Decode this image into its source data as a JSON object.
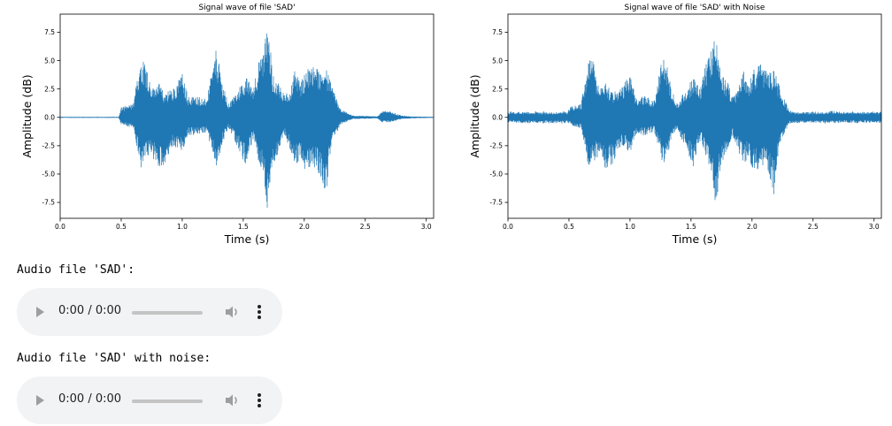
{
  "chart_data": [
    {
      "type": "line",
      "title": "Signal wave of file 'SAD'",
      "xlabel": "Time (s)",
      "ylabel": "Amplitude (dB)",
      "xlim": [
        0.0,
        3.06
      ],
      "ylim": [
        -8.9,
        9.1
      ],
      "xticks": [
        "0.0",
        "0.5",
        "1.0",
        "1.5",
        "2.0",
        "2.5",
        "3.0"
      ],
      "yticks": [
        "-7.5",
        "-5.0",
        "-2.5",
        "0.0",
        "2.5",
        "5.0",
        "7.5"
      ],
      "color": "#1f77b4",
      "noise_floor": 0.05,
      "envelope": [
        [
          0.0,
          0.05,
          -0.05
        ],
        [
          0.48,
          0.05,
          -0.05
        ],
        [
          0.5,
          0.9,
          -0.6
        ],
        [
          0.6,
          1.2,
          -1.0
        ],
        [
          0.66,
          5.4,
          -4.6
        ],
        [
          0.7,
          4.9,
          -3.9
        ],
        [
          0.75,
          2.5,
          -3.4
        ],
        [
          0.8,
          3.2,
          -4.6
        ],
        [
          0.85,
          2.2,
          -4.2
        ],
        [
          0.93,
          2.6,
          -2.6
        ],
        [
          1.0,
          3.9,
          -3.1
        ],
        [
          1.05,
          1.8,
          -1.6
        ],
        [
          1.12,
          1.9,
          -1.6
        ],
        [
          1.2,
          1.6,
          -1.3
        ],
        [
          1.28,
          6.1,
          -4.6
        ],
        [
          1.33,
          3.0,
          -2.3
        ],
        [
          1.38,
          1.2,
          -1.0
        ],
        [
          1.45,
          2.3,
          -2.5
        ],
        [
          1.52,
          3.6,
          -4.4
        ],
        [
          1.58,
          2.8,
          -1.9
        ],
        [
          1.62,
          4.7,
          -3.7
        ],
        [
          1.67,
          6.0,
          -5.6
        ],
        [
          1.7,
          8.9,
          -8.8
        ],
        [
          1.74,
          4.0,
          -4.5
        ],
        [
          1.8,
          3.1,
          -3.0
        ],
        [
          1.84,
          1.9,
          -1.6
        ],
        [
          1.88,
          2.5,
          -2.7
        ],
        [
          1.93,
          4.4,
          -4.3
        ],
        [
          1.97,
          3.1,
          -3.5
        ],
        [
          2.02,
          4.4,
          -5.1
        ],
        [
          2.08,
          4.7,
          -4.4
        ],
        [
          2.13,
          3.9,
          -5.1
        ],
        [
          2.18,
          4.4,
          -6.8
        ],
        [
          2.22,
          2.9,
          -2.6
        ],
        [
          2.3,
          0.7,
          -0.6
        ],
        [
          2.4,
          0.15,
          -0.15
        ],
        [
          2.6,
          0.1,
          -0.1
        ],
        [
          2.64,
          0.6,
          -0.5
        ],
        [
          2.72,
          0.5,
          -0.4
        ],
        [
          2.8,
          0.15,
          -0.15
        ],
        [
          2.9,
          0.08,
          -0.08
        ],
        [
          3.06,
          0.05,
          -0.05
        ]
      ]
    },
    {
      "type": "line",
      "title": "Signal wave of file 'SAD' with Noise",
      "xlabel": "Time (s)",
      "ylabel": "Amplitude (dB)",
      "xlim": [
        0.0,
        3.06
      ],
      "ylim": [
        -8.9,
        9.1
      ],
      "xticks": [
        "0.0",
        "0.5",
        "1.0",
        "1.5",
        "2.0",
        "2.5",
        "3.0"
      ],
      "yticks": [
        "-7.5",
        "-5.0",
        "-2.5",
        "0.0",
        "2.5",
        "5.0",
        "7.5"
      ],
      "color": "#1f77b4",
      "noise_floor": 0.55,
      "envelope": [
        [
          0.0,
          0.05,
          -0.05
        ],
        [
          0.48,
          0.05,
          -0.05
        ],
        [
          0.5,
          0.9,
          -0.6
        ],
        [
          0.6,
          1.2,
          -1.0
        ],
        [
          0.66,
          5.4,
          -4.6
        ],
        [
          0.7,
          4.9,
          -3.9
        ],
        [
          0.75,
          2.5,
          -3.4
        ],
        [
          0.8,
          3.2,
          -4.6
        ],
        [
          0.85,
          2.2,
          -4.2
        ],
        [
          0.93,
          2.6,
          -2.6
        ],
        [
          1.0,
          3.9,
          -3.1
        ],
        [
          1.05,
          1.8,
          -1.6
        ],
        [
          1.12,
          1.9,
          -1.6
        ],
        [
          1.2,
          1.6,
          -1.3
        ],
        [
          1.28,
          6.1,
          -4.6
        ],
        [
          1.33,
          3.0,
          -2.3
        ],
        [
          1.38,
          1.2,
          -1.0
        ],
        [
          1.45,
          2.3,
          -2.5
        ],
        [
          1.52,
          3.6,
          -4.4
        ],
        [
          1.58,
          2.8,
          -1.9
        ],
        [
          1.62,
          4.7,
          -3.7
        ],
        [
          1.67,
          6.0,
          -5.6
        ],
        [
          1.7,
          8.9,
          -8.8
        ],
        [
          1.74,
          4.0,
          -4.5
        ],
        [
          1.8,
          3.1,
          -3.0
        ],
        [
          1.84,
          1.9,
          -1.6
        ],
        [
          1.88,
          2.5,
          -2.7
        ],
        [
          1.93,
          4.4,
          -4.3
        ],
        [
          1.97,
          3.1,
          -3.5
        ],
        [
          2.02,
          4.4,
          -5.1
        ],
        [
          2.08,
          4.7,
          -4.4
        ],
        [
          2.13,
          3.9,
          -5.1
        ],
        [
          2.18,
          4.4,
          -6.8
        ],
        [
          2.22,
          2.9,
          -2.6
        ],
        [
          2.3,
          0.7,
          -0.6
        ],
        [
          2.4,
          0.15,
          -0.15
        ],
        [
          2.6,
          0.1,
          -0.1
        ],
        [
          2.64,
          0.6,
          -0.5
        ],
        [
          2.72,
          0.5,
          -0.4
        ],
        [
          2.8,
          0.15,
          -0.15
        ],
        [
          2.9,
          0.08,
          -0.08
        ],
        [
          3.06,
          0.05,
          -0.05
        ]
      ]
    }
  ],
  "audio_sections": [
    {
      "label": "Audio file 'SAD':",
      "time": "0:00 / 0:00",
      "progress": 0
    },
    {
      "label": "Audio file 'SAD' with noise:",
      "time": "0:00 / 0:00",
      "progress": 0
    }
  ],
  "icons": {
    "play": "play-icon",
    "volume": "volume-icon",
    "more": "more-options-icon"
  },
  "colors": {
    "series": "#1f77b4",
    "player_bg": "#f1f3f4"
  }
}
